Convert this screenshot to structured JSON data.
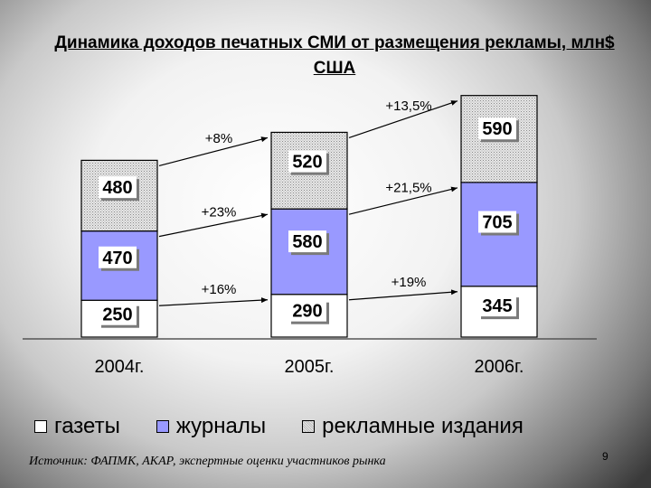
{
  "title": "Динамика доходов печатных СМИ от размещения рекламы, млн$ США",
  "chart_data": {
    "type": "bar",
    "stacked": true,
    "categories": [
      "2004г.",
      "2005г.",
      "2006г."
    ],
    "series": [
      {
        "name": "газеты",
        "values": [
          250,
          290,
          345
        ],
        "color": "#ffffff"
      },
      {
        "name": "журналы",
        "values": [
          470,
          580,
          705
        ],
        "color": "#9999ff"
      },
      {
        "name": "рекламные издания",
        "values": [
          480,
          520,
          590
        ],
        "color": "#c8c8c8"
      }
    ],
    "growth_labels": [
      {
        "from": "2004г.",
        "to": "2005г.",
        "series": "газеты",
        "label": "+16%"
      },
      {
        "from": "2004г.",
        "to": "2005г.",
        "series": "журналы",
        "label": "+23%"
      },
      {
        "from": "2004г.",
        "to": "2005г.",
        "series": "рекламные издания",
        "label": "+8%"
      },
      {
        "from": "2005г.",
        "to": "2006г.",
        "series": "газеты",
        "label": "+19%"
      },
      {
        "from": "2005г.",
        "to": "2006г.",
        "series": "журналы",
        "label": "+21,5%"
      },
      {
        "from": "2005г.",
        "to": "2006г.",
        "series": "рекламные издания",
        "label": "+13,5%"
      }
    ],
    "legend_position": "bottom",
    "grid": false
  },
  "source": "Источник: ФАПМК, АКАР, экспертные оценки участников рынка",
  "page_number": "9"
}
